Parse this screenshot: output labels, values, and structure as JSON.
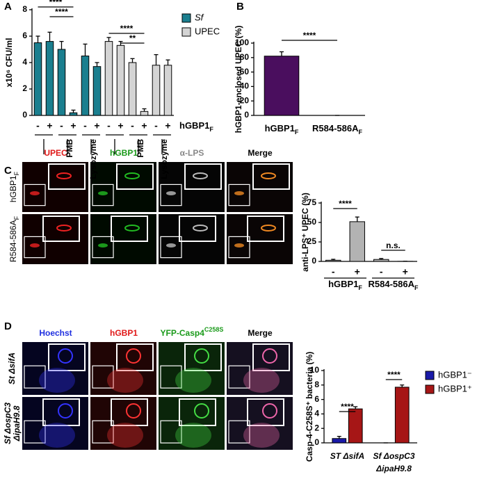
{
  "figure": {
    "panels": [
      "A",
      "B",
      "C",
      "D"
    ],
    "panel_c": {
      "columns": [
        "UPEC",
        "hGBP1",
        "α-LPS",
        "Merge"
      ],
      "rows": [
        {
          "text": "hGBP1",
          "sub": "F"
        },
        {
          "text": "R584-586A",
          "sub": "F"
        }
      ]
    },
    "panel_d": {
      "columns": [
        "Hoechst",
        "hGBP1",
        {
          "text": "YFP-Casp4",
          "sup": "C258S"
        },
        "Merge"
      ],
      "rows": [
        [
          "St ΔsifA"
        ],
        [
          "Sf ΔospC3",
          "ΔipaH9.8"
        ]
      ]
    }
  },
  "chart_data": [
    {
      "type": "bar",
      "ylabel": "x10⁶ CFU/ml",
      "categories": [
        "-",
        "+",
        "-",
        "+",
        "-",
        "+",
        "-",
        "+",
        "-",
        "+",
        "-",
        "+"
      ],
      "x_label": {
        "text": "hGBP1",
        "sub": "F"
      },
      "groups": [
        null,
        "PMB",
        "Lysozyme",
        null,
        "PMB",
        "Lysozyme"
      ],
      "series": [
        {
          "name": "Sf",
          "color": "#1b7f8f",
          "values": [
            5.5,
            5.6,
            5.0,
            0.2,
            4.5,
            3.7,
            null,
            null,
            null,
            null,
            null,
            null
          ],
          "errors": [
            0.5,
            0.7,
            0.6,
            0.2,
            0.9,
            0.3,
            null,
            null,
            null,
            null,
            null,
            null
          ]
        },
        {
          "name": "UPEC",
          "color": "#d4d4d4",
          "values": [
            null,
            null,
            null,
            null,
            null,
            null,
            5.6,
            5.3,
            4.0,
            0.3,
            3.8,
            3.8
          ],
          "errors": [
            null,
            null,
            null,
            null,
            null,
            null,
            0.3,
            0.3,
            0.3,
            0.2,
            0.8,
            0.4
          ]
        }
      ],
      "ylim": [
        0,
        8
      ],
      "yticks": [
        0,
        2,
        4,
        6,
        8
      ],
      "significance": [
        {
          "text": "****",
          "between": [
            0,
            3
          ]
        },
        {
          "text": "****",
          "between": [
            1,
            3
          ]
        },
        {
          "text": "****",
          "between": [
            6,
            9
          ]
        },
        {
          "text": "**",
          "between": [
            7,
            9
          ]
        }
      ]
    },
    {
      "type": "bar",
      "ylabel": "hGBP1-enclosed UPEC (%)",
      "categories": [
        {
          "text": "hGBP1",
          "sub": "F"
        },
        {
          "text": "R584-586A",
          "sub": "F"
        }
      ],
      "values": [
        82,
        0
      ],
      "errors": [
        6,
        0
      ],
      "color": "#4a0e5e",
      "ylim": [
        0,
        100
      ],
      "yticks": [
        0,
        20,
        40,
        60,
        80,
        100
      ],
      "significance": [
        {
          "text": "****",
          "between": [
            0,
            1
          ]
        }
      ]
    },
    {
      "type": "bar",
      "ylabel": "anti-LPS⁺ UPEC (%)",
      "categories": [
        "-",
        "+",
        "-",
        "+"
      ],
      "groups": [
        {
          "text": "hGBP1",
          "sub": "F"
        },
        {
          "text": "R584-586A",
          "sub": "F"
        }
      ],
      "values": [
        1.5,
        51,
        2.5,
        0.1
      ],
      "errors": [
        1.2,
        6,
        1.2,
        0.1
      ],
      "color": "#b3b3b3",
      "ylim": [
        0,
        75
      ],
      "yticks": [
        0,
        25,
        50,
        75
      ],
      "significance": [
        {
          "text": "****",
          "between": [
            0,
            1
          ]
        },
        {
          "text": "n.s.",
          "between": [
            2,
            3
          ]
        }
      ]
    },
    {
      "type": "bar",
      "ylabel": "Casp-4-C258S⁺ bacteria (%)",
      "barmode": "group",
      "categories": [
        [
          "ST ΔsifA"
        ],
        [
          "Sf ΔospC3",
          "ΔipaH9.8"
        ]
      ],
      "series": [
        {
          "name": "hGBP1⁻",
          "color": "#1a1aa8",
          "values": [
            0.6,
            0
          ],
          "errors": [
            0.3,
            0
          ]
        },
        {
          "name": "hGBP1⁺",
          "color": "#a61616",
          "values": [
            4.7,
            7.7
          ],
          "errors": [
            0.3,
            0.3
          ]
        }
      ],
      "ylim": [
        0,
        10
      ],
      "yticks": [
        0,
        2,
        4,
        6,
        8,
        10
      ],
      "significance": [
        {
          "text": "****",
          "category": 0
        },
        {
          "text": "****",
          "category": 1
        }
      ]
    }
  ]
}
